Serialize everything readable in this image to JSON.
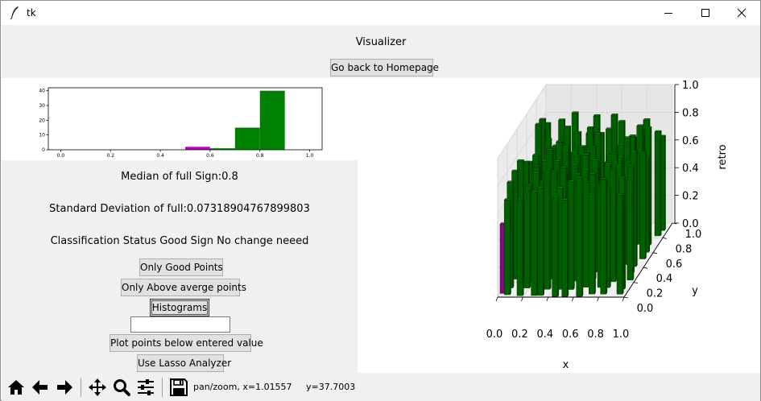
{
  "window": {
    "title": "tk"
  },
  "header": {
    "title": "Visualizer",
    "back_button": "Go back to Homepage"
  },
  "histogram": {
    "type": "bar",
    "x_ticks": [
      "0.0",
      "0.2",
      "0.4",
      "0.6",
      "0.8",
      "1.0"
    ],
    "y_ticks": [
      "0",
      "10",
      "20",
      "30",
      "40"
    ],
    "bins": [
      {
        "x0": 0.5,
        "x1": 0.6,
        "count": 2,
        "color": "#bf00bf"
      },
      {
        "x0": 0.6,
        "x1": 0.7,
        "count": 1,
        "color": "#008000"
      },
      {
        "x0": 0.7,
        "x1": 0.8,
        "count": 15,
        "color": "#008000"
      },
      {
        "x0": 0.8,
        "x1": 0.9,
        "count": 40,
        "color": "#008000"
      }
    ],
    "xlim": [
      -0.05,
      1.05
    ],
    "ylim": [
      0,
      42
    ]
  },
  "stats": {
    "median": "Median of full Sign:0.8",
    "std": "Standard Deviation of full:0.07318904767899803",
    "classification": "Classification Status Good Sign No change neeed"
  },
  "buttons": {
    "good_points": "Only Good Points",
    "above_avg": "Only Above averge points",
    "histograms": "Histograms",
    "plot_below": "Plot points below entered value",
    "lasso": "Use Lasso Analyzer"
  },
  "entry": {
    "value": ""
  },
  "plot3d": {
    "type": "bar3d",
    "xlabel": "x",
    "ylabel": "y",
    "zlabel": "retro",
    "x_ticks": [
      "0.0",
      "0.2",
      "0.4",
      "0.6",
      "0.8",
      "1.0"
    ],
    "y_ticks": [
      "0.0",
      "0.2",
      "0.4",
      "0.6",
      "0.8",
      "1.0"
    ],
    "z_ticks": [
      "0.0",
      "0.2",
      "0.4",
      "0.6",
      "0.8",
      "1.0"
    ],
    "colors": {
      "good": "#008000",
      "bad": "#bf00bf"
    }
  },
  "toolbar": {
    "coords": "pan/zoom, x=1.01557     y=37.7003"
  }
}
